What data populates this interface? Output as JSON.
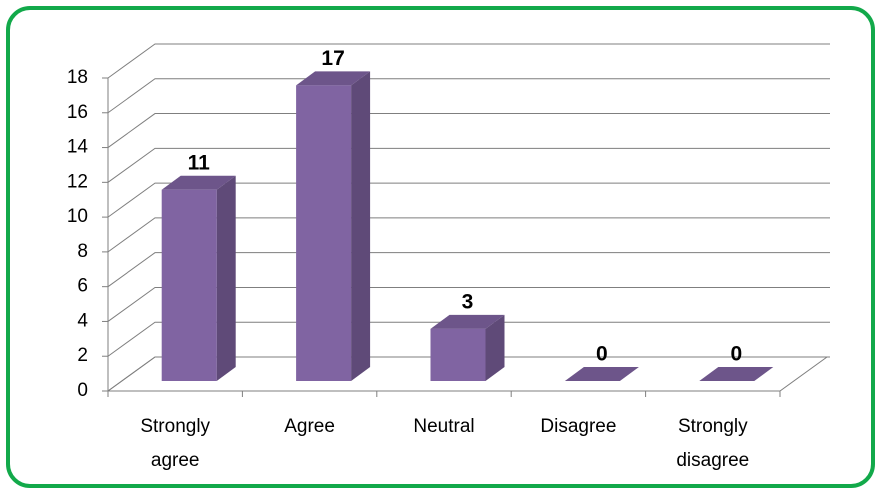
{
  "chart_data": {
    "type": "bar3d",
    "categories": [
      "Strongly agree",
      "Agree",
      "Neutral",
      "Disagree",
      "Strongly disagree"
    ],
    "values": [
      11,
      17,
      3,
      0,
      0
    ],
    "color": "#8064a2",
    "ylim": [
      0,
      18
    ],
    "yticks": [
      0,
      2,
      4,
      6,
      8,
      10,
      12,
      14,
      16,
      18
    ],
    "grid": true
  }
}
